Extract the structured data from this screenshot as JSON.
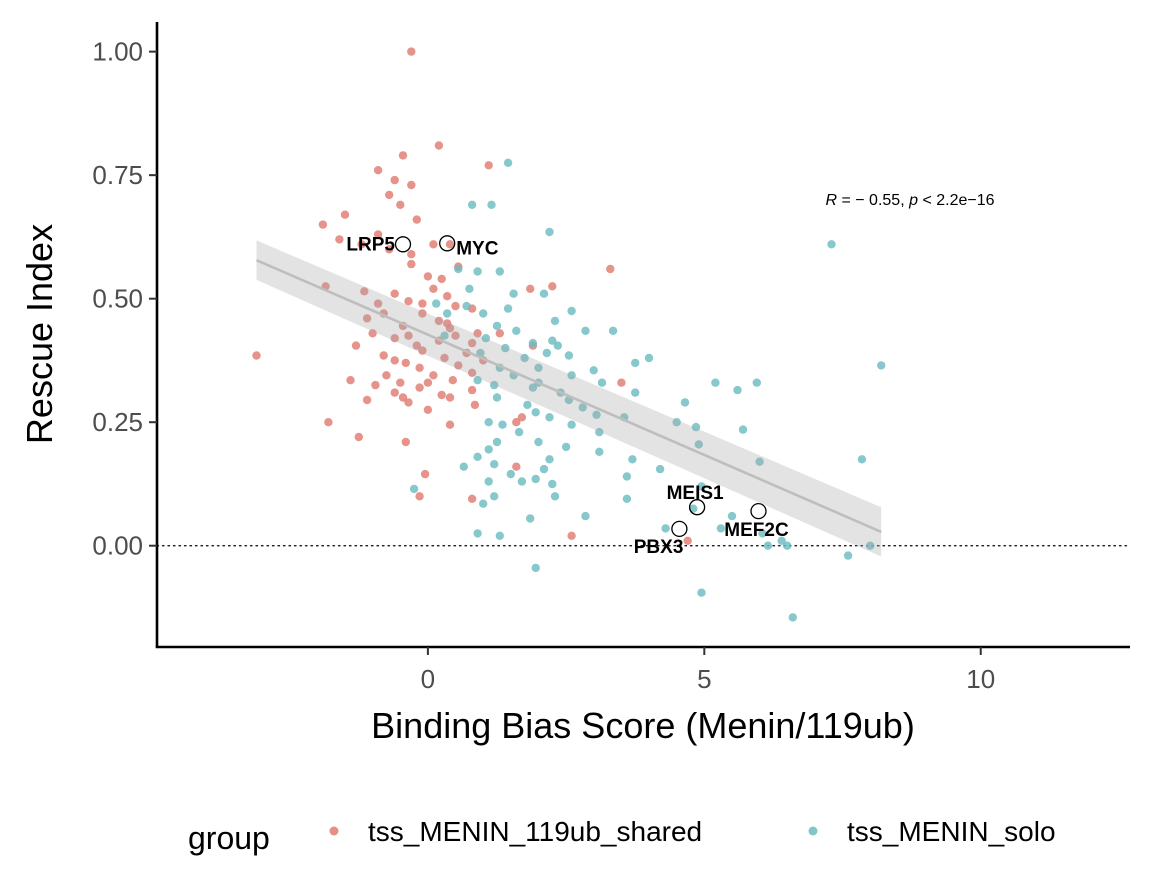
{
  "chart_data": {
    "type": "scatter",
    "xlabel": "Binding Bias Score (Menin/119ub)",
    "ylabel": "Rescue Index",
    "xlim": [
      -4.9,
      12.7
    ],
    "ylim": [
      -0.205,
      1.06
    ],
    "x_ticks": [
      0,
      5,
      10
    ],
    "x_tick_labels": [
      "0",
      "5",
      "10"
    ],
    "y_ticks": [
      0,
      0.25,
      0.5,
      0.75,
      1.0
    ],
    "y_tick_labels": [
      "0.00",
      "0.25",
      "0.50",
      "0.75",
      "1.00"
    ],
    "reference_line": {
      "y": 0,
      "style": "dotted"
    },
    "regression": {
      "x": [
        -3.1,
        8.2
      ],
      "y": [
        0.578,
        0.028
      ],
      "band_half_width": [
        0.04,
        0.05
      ],
      "color": "#bebebe"
    },
    "annotation": {
      "text_r": "R",
      "text_rest": " = − 0.55, ",
      "text_p": "p",
      "text_end": " < 2.2e−16"
    },
    "legend": {
      "title": "group",
      "position": "bottom"
    },
    "highlighted_genes": [
      {
        "label": "LRP5",
        "x": -0.45,
        "y": 0.61,
        "anchor": "end"
      },
      {
        "label": "MYC",
        "x": 0.35,
        "y": 0.612,
        "anchor": "start"
      },
      {
        "label": "MEIS1",
        "x": 4.87,
        "y": 0.078,
        "anchor": "middle"
      },
      {
        "label": "MEF2C",
        "x": 5.98,
        "y": 0.07,
        "anchor": "middle"
      },
      {
        "label": "PBX3",
        "x": 4.55,
        "y": 0.034,
        "anchor": "end"
      }
    ],
    "series": [
      {
        "name": "tss_MENIN_119ub_shared",
        "color": "#e07b72",
        "points": [
          [
            -0.3,
            1.0
          ],
          [
            0.2,
            0.81
          ],
          [
            -0.45,
            0.79
          ],
          [
            1.1,
            0.77
          ],
          [
            -0.9,
            0.76
          ],
          [
            -0.6,
            0.74
          ],
          [
            -0.3,
            0.73
          ],
          [
            -0.7,
            0.71
          ],
          [
            -0.5,
            0.69
          ],
          [
            -1.5,
            0.67
          ],
          [
            -0.2,
            0.66
          ],
          [
            -1.9,
            0.65
          ],
          [
            -0.9,
            0.63
          ],
          [
            -1.6,
            0.62
          ],
          [
            -1.2,
            0.61
          ],
          [
            -0.7,
            0.6
          ],
          [
            0.1,
            0.61
          ],
          [
            -0.3,
            0.59
          ],
          [
            0.4,
            0.61
          ],
          [
            0.55,
            0.565
          ],
          [
            -0.3,
            0.57
          ],
          [
            3.3,
            0.56
          ],
          [
            0.0,
            0.545
          ],
          [
            0.25,
            0.54
          ],
          [
            -1.85,
            0.525
          ],
          [
            -1.15,
            0.515
          ],
          [
            0.1,
            0.52
          ],
          [
            1.85,
            0.52
          ],
          [
            2.25,
            0.525
          ],
          [
            0.35,
            0.505
          ],
          [
            -0.6,
            0.51
          ],
          [
            -0.35,
            0.495
          ],
          [
            -0.9,
            0.49
          ],
          [
            -0.1,
            0.49
          ],
          [
            0.5,
            0.485
          ],
          [
            0.8,
            0.48
          ],
          [
            -0.8,
            0.47
          ],
          [
            -0.1,
            0.47
          ],
          [
            -1.1,
            0.46
          ],
          [
            0.2,
            0.455
          ],
          [
            0.35,
            0.45
          ],
          [
            -0.45,
            0.445
          ],
          [
            0.4,
            0.44
          ],
          [
            -1.0,
            0.43
          ],
          [
            0.9,
            0.43
          ],
          [
            1.3,
            0.43
          ],
          [
            -0.35,
            0.425
          ],
          [
            0.5,
            0.425
          ],
          [
            -0.6,
            0.42
          ],
          [
            0.2,
            0.415
          ],
          [
            0.8,
            0.41
          ],
          [
            -1.3,
            0.405
          ],
          [
            -0.2,
            0.405
          ],
          [
            1.9,
            0.405
          ],
          [
            -0.1,
            0.395
          ],
          [
            0.7,
            0.39
          ],
          [
            -0.8,
            0.385
          ],
          [
            -3.1,
            0.385
          ],
          [
            0.3,
            0.38
          ],
          [
            -0.6,
            0.375
          ],
          [
            1.0,
            0.375
          ],
          [
            -0.4,
            0.37
          ],
          [
            -0.15,
            0.36
          ],
          [
            0.55,
            0.365
          ],
          [
            0.8,
            0.35
          ],
          [
            -0.75,
            0.345
          ],
          [
            0.1,
            0.345
          ],
          [
            -1.4,
            0.335
          ],
          [
            -0.5,
            0.33
          ],
          [
            0.0,
            0.33
          ],
          [
            0.45,
            0.335
          ],
          [
            3.5,
            0.33
          ],
          [
            -0.95,
            0.325
          ],
          [
            -0.15,
            0.32
          ],
          [
            0.8,
            0.315
          ],
          [
            -0.6,
            0.31
          ],
          [
            0.25,
            0.305
          ],
          [
            -0.45,
            0.3
          ],
          [
            -1.1,
            0.295
          ],
          [
            -0.35,
            0.29
          ],
          [
            0.4,
            0.3
          ],
          [
            0.85,
            0.285
          ],
          [
            0.0,
            0.275
          ],
          [
            1.7,
            0.26
          ],
          [
            -1.8,
            0.25
          ],
          [
            0.4,
            0.245
          ],
          [
            1.6,
            0.25
          ],
          [
            -1.25,
            0.22
          ],
          [
            -0.4,
            0.21
          ],
          [
            1.6,
            0.16
          ],
          [
            -0.05,
            0.145
          ],
          [
            0.8,
            0.095
          ],
          [
            -0.15,
            0.1
          ],
          [
            2.6,
            0.02
          ],
          [
            4.7,
            0.01
          ]
        ]
      },
      {
        "name": "tss_MENIN_solo",
        "color": "#6cbcc1",
        "points": [
          [
            1.45,
            0.775
          ],
          [
            0.8,
            0.69
          ],
          [
            1.15,
            0.69
          ],
          [
            2.2,
            0.635
          ],
          [
            7.3,
            0.61
          ],
          [
            0.55,
            0.56
          ],
          [
            0.9,
            0.555
          ],
          [
            1.3,
            0.555
          ],
          [
            0.75,
            0.52
          ],
          [
            1.55,
            0.51
          ],
          [
            2.1,
            0.51
          ],
          [
            0.15,
            0.49
          ],
          [
            0.7,
            0.485
          ],
          [
            1.45,
            0.48
          ],
          [
            2.6,
            0.475
          ],
          [
            0.35,
            0.47
          ],
          [
            1.0,
            0.47
          ],
          [
            2.3,
            0.455
          ],
          [
            1.25,
            0.445
          ],
          [
            1.6,
            0.435
          ],
          [
            2.85,
            0.435
          ],
          [
            3.35,
            0.435
          ],
          [
            0.3,
            0.425
          ],
          [
            1.05,
            0.42
          ],
          [
            2.25,
            0.415
          ],
          [
            1.9,
            0.41
          ],
          [
            2.35,
            0.405
          ],
          [
            1.4,
            0.4
          ],
          [
            0.95,
            0.39
          ],
          [
            2.15,
            0.39
          ],
          [
            2.55,
            0.385
          ],
          [
            1.75,
            0.38
          ],
          [
            4.0,
            0.38
          ],
          [
            3.75,
            0.37
          ],
          [
            8.2,
            0.365
          ],
          [
            1.3,
            0.36
          ],
          [
            2.0,
            0.36
          ],
          [
            3.0,
            0.355
          ],
          [
            1.55,
            0.345
          ],
          [
            2.6,
            0.345
          ],
          [
            0.9,
            0.335
          ],
          [
            2.0,
            0.33
          ],
          [
            3.15,
            0.33
          ],
          [
            5.2,
            0.33
          ],
          [
            5.95,
            0.33
          ],
          [
            1.2,
            0.325
          ],
          [
            1.9,
            0.32
          ],
          [
            5.6,
            0.315
          ],
          [
            2.4,
            0.31
          ],
          [
            3.75,
            0.31
          ],
          [
            1.25,
            0.3
          ],
          [
            2.55,
            0.295
          ],
          [
            4.65,
            0.29
          ],
          [
            1.8,
            0.285
          ],
          [
            2.8,
            0.28
          ],
          [
            1.95,
            0.27
          ],
          [
            2.2,
            0.26
          ],
          [
            3.05,
            0.265
          ],
          [
            3.55,
            0.26
          ],
          [
            1.1,
            0.25
          ],
          [
            4.5,
            0.25
          ],
          [
            1.35,
            0.245
          ],
          [
            2.6,
            0.245
          ],
          [
            4.85,
            0.24
          ],
          [
            5.7,
            0.235
          ],
          [
            1.65,
            0.23
          ],
          [
            3.1,
            0.23
          ],
          [
            1.25,
            0.21
          ],
          [
            2.0,
            0.21
          ],
          [
            4.9,
            0.205
          ],
          [
            2.5,
            0.2
          ],
          [
            1.1,
            0.195
          ],
          [
            3.1,
            0.19
          ],
          [
            6.0,
            0.17
          ],
          [
            7.85,
            0.175
          ],
          [
            0.9,
            0.18
          ],
          [
            2.2,
            0.175
          ],
          [
            3.7,
            0.175
          ],
          [
            1.2,
            0.165
          ],
          [
            0.65,
            0.16
          ],
          [
            2.1,
            0.155
          ],
          [
            4.2,
            0.155
          ],
          [
            1.5,
            0.145
          ],
          [
            3.6,
            0.14
          ],
          [
            1.1,
            0.13
          ],
          [
            1.7,
            0.13
          ],
          [
            1.95,
            0.135
          ],
          [
            2.25,
            0.125
          ],
          [
            4.95,
            0.12
          ],
          [
            -0.25,
            0.115
          ],
          [
            1.2,
            0.1
          ],
          [
            2.3,
            0.1
          ],
          [
            3.6,
            0.095
          ],
          [
            1.0,
            0.085
          ],
          [
            2.85,
            0.06
          ],
          [
            4.8,
            0.075
          ],
          [
            5.5,
            0.06
          ],
          [
            1.85,
            0.055
          ],
          [
            4.3,
            0.035
          ],
          [
            5.3,
            0.035
          ],
          [
            6.05,
            0.025
          ],
          [
            0.9,
            0.025
          ],
          [
            1.3,
            0.02
          ],
          [
            6.4,
            0.01
          ],
          [
            6.15,
            0.0
          ],
          [
            6.5,
            0.0
          ],
          [
            8.0,
            0.0
          ],
          [
            7.6,
            -0.02
          ],
          [
            1.95,
            -0.045
          ],
          [
            4.95,
            -0.095
          ],
          [
            6.6,
            -0.145
          ]
        ]
      }
    ]
  }
}
